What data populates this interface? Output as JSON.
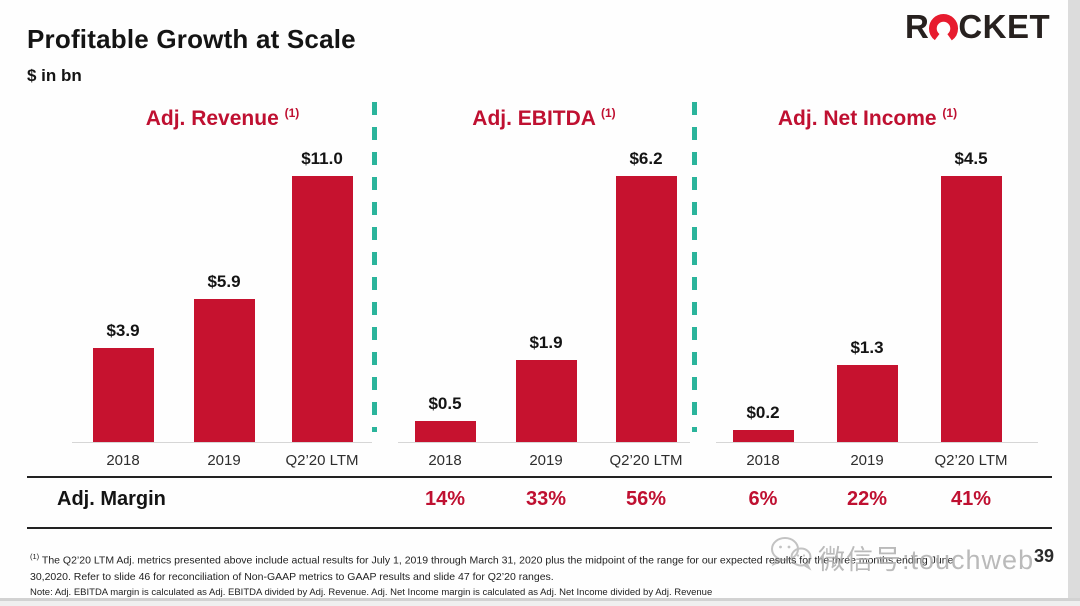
{
  "header": {
    "title": "Profitable Growth at Scale",
    "subtitle": "$ in bn",
    "logo": {
      "prefix": "R",
      "suffix": "CKET",
      "name": "ROCKET"
    }
  },
  "chart_data": [
    {
      "type": "bar",
      "title": "Adj. Revenue",
      "footnote_ref": "(1)",
      "categories": [
        "2018",
        "2019",
        "Q2’20 LTM"
      ],
      "values": [
        3.9,
        5.9,
        11.0
      ],
      "value_labels": [
        "$3.9",
        "$5.9",
        "$11.0"
      ],
      "unit": "$ in bn",
      "bar_color": "#c6122f",
      "margins": []
    },
    {
      "type": "bar",
      "title": "Adj. EBITDA",
      "footnote_ref": "(1)",
      "categories": [
        "2018",
        "2019",
        "Q2’20 LTM"
      ],
      "values": [
        0.5,
        1.9,
        6.2
      ],
      "value_labels": [
        "$0.5",
        "$1.9",
        "$6.2"
      ],
      "unit": "$ in bn",
      "bar_color": "#c6122f",
      "margins": [
        "14%",
        "33%",
        "56%"
      ]
    },
    {
      "type": "bar",
      "title": "Adj. Net Income",
      "footnote_ref": "(1)",
      "categories": [
        "2018",
        "2019",
        "Q2’20 LTM"
      ],
      "values": [
        0.2,
        1.3,
        4.5
      ],
      "value_labels": [
        "$0.2",
        "$1.3",
        "$4.5"
      ],
      "unit": "$ in bn",
      "bar_color": "#c6122f",
      "margins": [
        "6%",
        "22%",
        "41%"
      ]
    }
  ],
  "margin_row": {
    "label": "Adj. Margin"
  },
  "footnotes": {
    "ref": "(1)",
    "line1": "The Q2’20 LTM  Adj. metrics presented above include actual results for July 1, 2019 through March 31, 2020 plus the midpoint of the range for our expected results for the three months ending June",
    "line2": "30,2020. Refer  to slide 46 for reconciliation of Non-GAAP  metrics to GAAP  results and slide 47 for Q2’20 ranges.",
    "note": "Note: Adj. EBITDA margin is calculated as Adj. EBITDA divided by Adj. Revenue. Adj. Net Income margin is calculated as Adj. Net Income divided by Adj. Revenue"
  },
  "footer": {
    "page_number": "39",
    "watermark": "微信号:touchweb"
  },
  "colors": {
    "accent_red": "#c6122f",
    "divider_teal": "#2bb49b",
    "logo_red": "#e71b2e"
  }
}
